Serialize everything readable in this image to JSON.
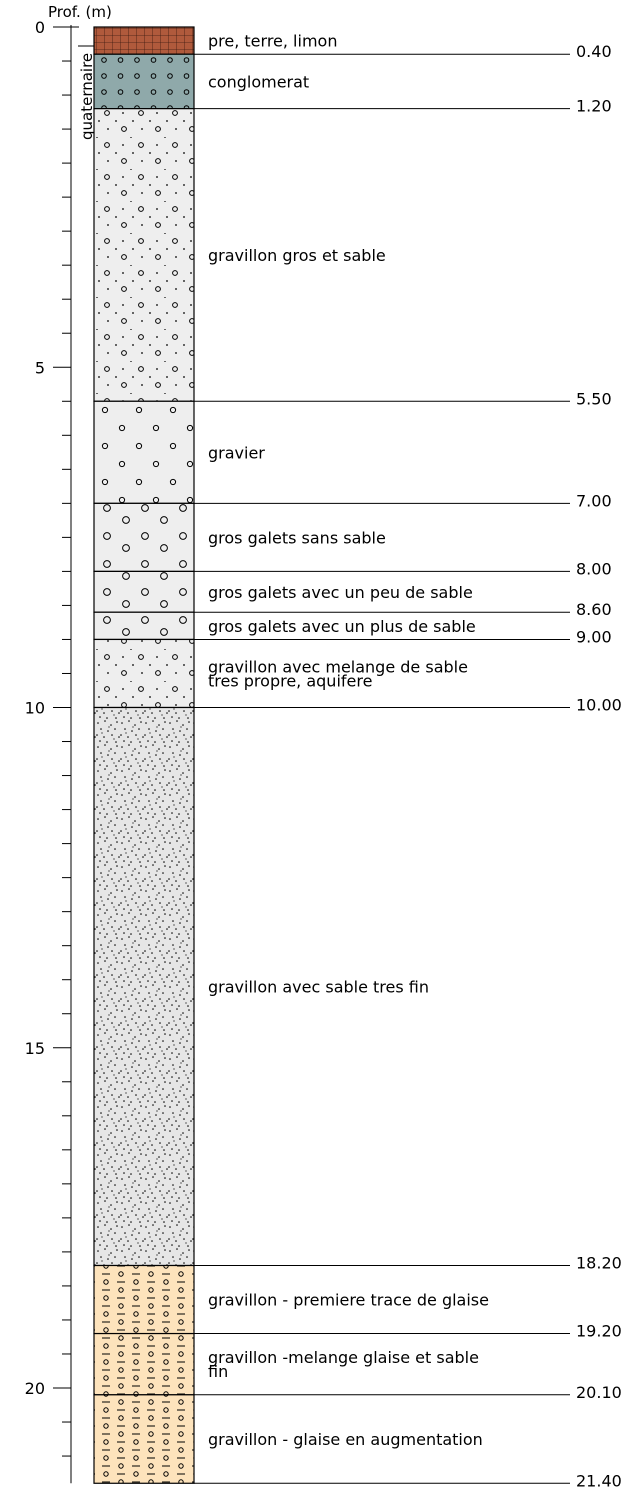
{
  "axis": {
    "title": "Prof. (m)",
    "max_depth": 21.4,
    "major_ticks": [
      0,
      5,
      10,
      15,
      20
    ],
    "major_labels": [
      "0",
      "5",
      "10",
      "15",
      "20"
    ],
    "minor_step": 0.5
  },
  "stratigraphy": {
    "label": "quaternaire"
  },
  "layers": [
    {
      "top": 0.0,
      "bottom": 0.4,
      "depth_label": "0.40",
      "description": "pre, terre, limon",
      "pattern": "brick-grid",
      "fill": "#b05a3c"
    },
    {
      "top": 0.4,
      "bottom": 1.2,
      "depth_label": "1.20",
      "description": "conglomerat",
      "pattern": "circles-dense",
      "fill": "#8fa9aa"
    },
    {
      "top": 1.2,
      "bottom": 5.5,
      "depth_label": "5.50",
      "description": "gravillon gros et sable",
      "pattern": "circles-dots",
      "fill": "#eeeeee"
    },
    {
      "top": 5.5,
      "bottom": 7.0,
      "depth_label": "7.00",
      "description": "gravier",
      "pattern": "circles-sparse",
      "fill": "#eeeeee"
    },
    {
      "top": 7.0,
      "bottom": 8.0,
      "depth_label": "8.00",
      "description": "gros galets sans sable",
      "pattern": "circles-large",
      "fill": "#eeeeee"
    },
    {
      "top": 8.0,
      "bottom": 8.6,
      "depth_label": "8.60",
      "description": "gros galets avec un peu de sable",
      "pattern": "circles-large",
      "fill": "#eeeeee"
    },
    {
      "top": 8.6,
      "bottom": 9.0,
      "depth_label": "9.00",
      "description": "gros galets avec un plus de sable",
      "pattern": "circles-large",
      "fill": "#eeeeee"
    },
    {
      "top": 9.0,
      "bottom": 10.0,
      "depth_label": "10.00",
      "description": "gravillon avec melange de sable",
      "description2": " tres propre, aquifere",
      "pattern": "circles-dots",
      "fill": "#eeeeee"
    },
    {
      "top": 10.0,
      "bottom": 18.2,
      "depth_label": "18.20",
      "description": "gravillon avec sable tres fin",
      "pattern": "fine-dots",
      "fill": "#e6e6e6"
    },
    {
      "top": 18.2,
      "bottom": 19.2,
      "depth_label": "19.20",
      "description": "gravillon - premiere trace de glaise",
      "pattern": "clay-circles",
      "fill": "#fde3bc"
    },
    {
      "top": 19.2,
      "bottom": 20.1,
      "depth_label": "20.10",
      "description": "gravillon -melange glaise et sable",
      "description2": " fin",
      "pattern": "clay-circles",
      "fill": "#fde3bc"
    },
    {
      "top": 20.1,
      "bottom": 21.4,
      "depth_label": "21.40",
      "description": "gravillon - glaise en augmentation",
      "pattern": "clay-circles",
      "fill": "#fde3bc"
    }
  ],
  "colors": {
    "line": "#000000",
    "brick": "#b05a3c",
    "conglomerate": "#8fa9aa",
    "gravel": "#eeeeee",
    "fine_sand": "#e6e6e6",
    "clay": "#fde3bc"
  }
}
